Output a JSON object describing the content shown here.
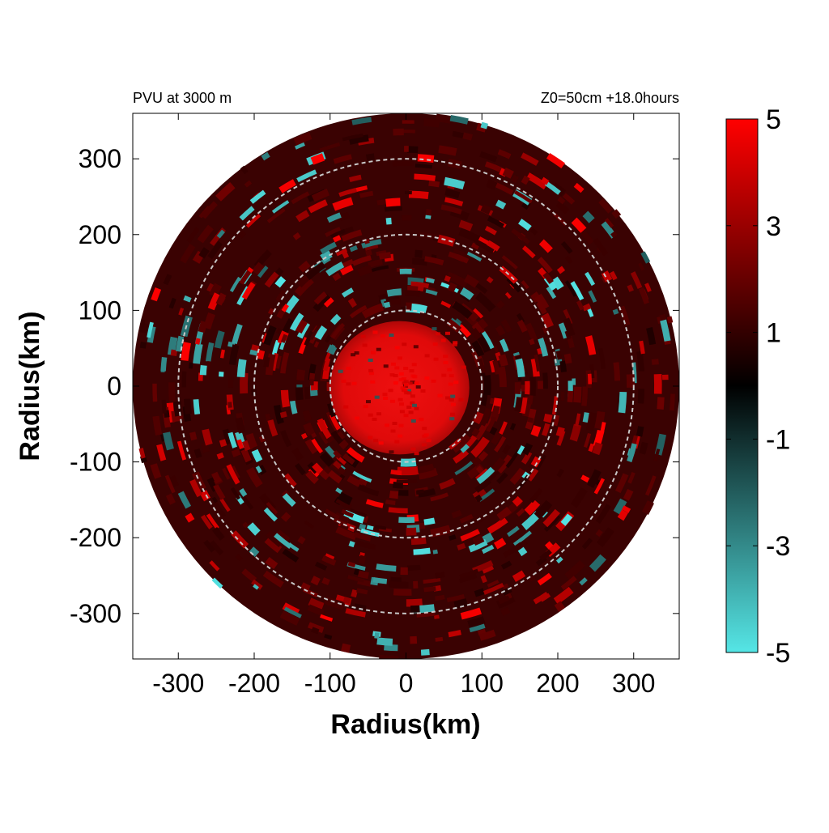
{
  "chart_data": {
    "type": "heatmap",
    "title_left": "PVU at  3000 m",
    "title_right": "Z0=50cm  +18.0hours",
    "xlabel": "Radius(km)",
    "ylabel": "Radius(km)",
    "xlim": [
      -360,
      360
    ],
    "ylim": [
      -360,
      360
    ],
    "x_ticks": [
      "-300",
      "-200",
      "-100",
      "0",
      "100",
      "200",
      "300"
    ],
    "x_tick_values": [
      -300,
      -200,
      -100,
      0,
      100,
      200,
      300
    ],
    "y_ticks": [
      "300",
      "200",
      "100",
      "0",
      "-100",
      "-200",
      "-300"
    ],
    "y_tick_values": [
      300,
      200,
      100,
      0,
      -100,
      -200,
      -300
    ],
    "domain_radius_km": 360,
    "reference_circles_km": [
      100,
      200,
      300
    ],
    "colorbar": {
      "range": [
        -5,
        5
      ],
      "tick_labels": [
        "5",
        "3",
        "1",
        "-1",
        "-3",
        "-5"
      ],
      "tick_values": [
        5,
        3,
        1,
        -1,
        -3,
        -5
      ],
      "colors": {
        "high": "#ff0000",
        "mid": "#000000",
        "low": "#55e6e6"
      }
    },
    "features": [
      {
        "type": "core",
        "radius_km": 100,
        "value": 4.5
      },
      {
        "type": "ring_background",
        "value": 1.3
      }
    ]
  }
}
